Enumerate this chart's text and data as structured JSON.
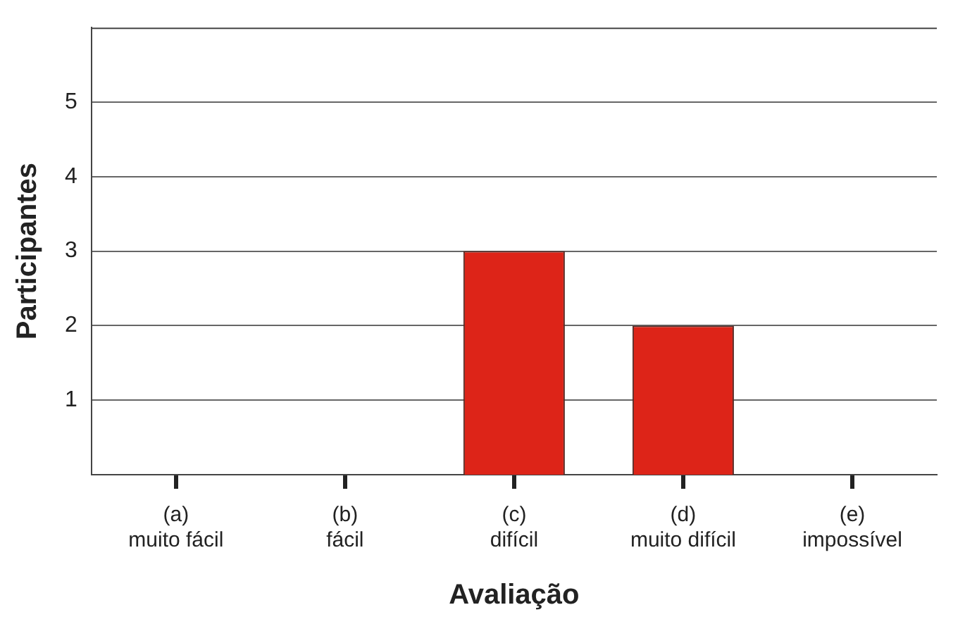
{
  "chart_data": {
    "type": "bar",
    "xlabel": "Avaliação",
    "ylabel": "Participantes",
    "categories": [
      "(a)\nmuito fácil",
      "(b)\nfácil",
      "(c)\ndifícil",
      "(d)\nmuito difícil",
      "(e)\nimpossível"
    ],
    "values": [
      0,
      0,
      3,
      2,
      0
    ],
    "color": "#dd2418",
    "ylim": [
      0,
      6
    ],
    "yticks": [
      1,
      2,
      3,
      4,
      5
    ],
    "grid": "y",
    "legend": false
  }
}
